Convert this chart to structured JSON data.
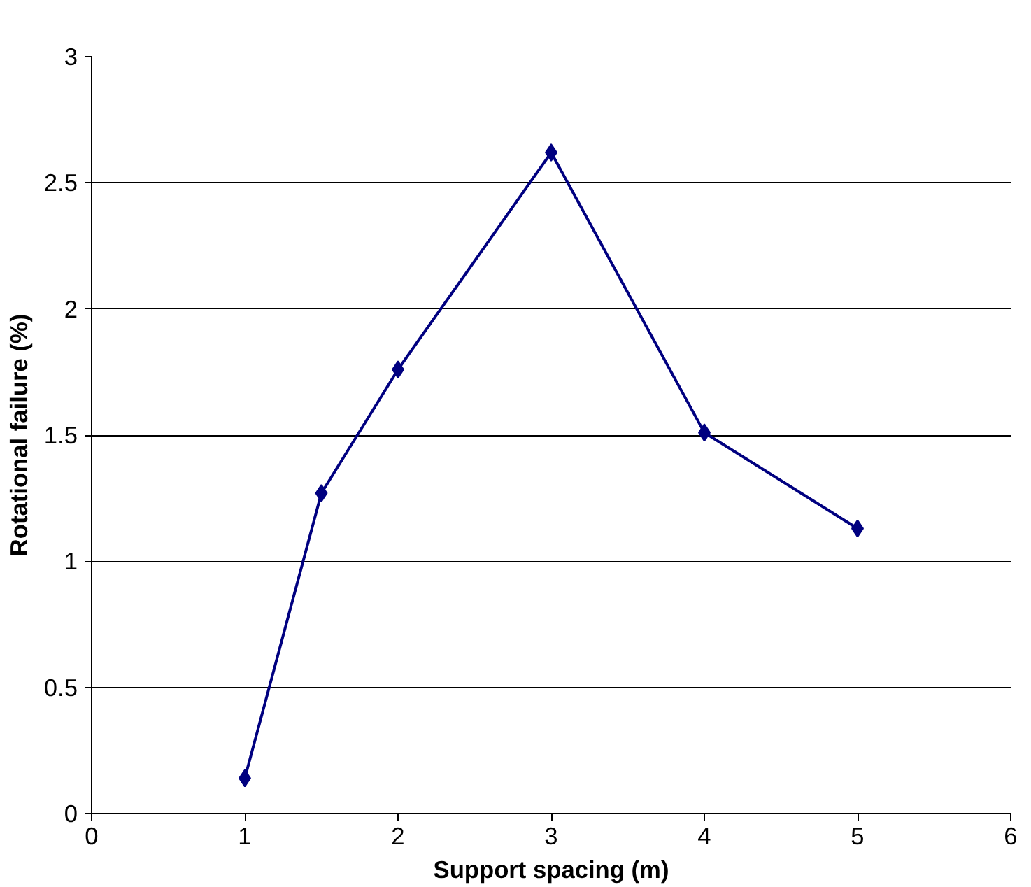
{
  "chart_data": {
    "type": "line",
    "xlabel": "Support spacing (m)",
    "ylabel": "Rotational failure (%)",
    "x": [
      1,
      1.5,
      2,
      3,
      4,
      5
    ],
    "series": [
      {
        "color": "#000080",
        "values": [
          0.14,
          1.27,
          1.76,
          2.62,
          1.51,
          1.13
        ]
      }
    ],
    "xlim": [
      0,
      6
    ],
    "xticks": [
      0,
      1,
      2,
      3,
      4,
      5,
      6
    ],
    "ylim": [
      0,
      3
    ],
    "yticks": [
      0,
      0.5,
      1,
      1.5,
      2,
      2.5,
      3
    ],
    "grid": "y",
    "marker": "diamond",
    "line_style": "solid"
  }
}
